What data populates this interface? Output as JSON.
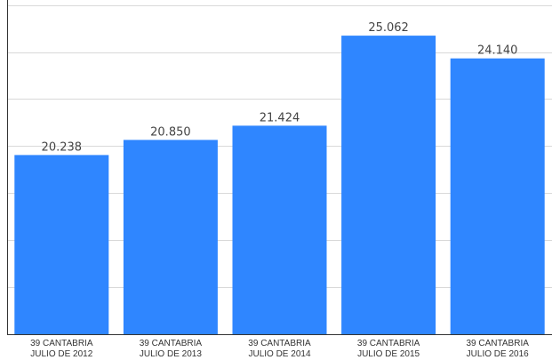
{
  "chart_data": {
    "type": "bar",
    "categories": [
      [
        "39 CANTABRIA",
        "JULIO DE 2012"
      ],
      [
        "39 CANTABRIA",
        "JULIO DE 2013"
      ],
      [
        "39 CANTABRIA",
        "JULIO DE 2014"
      ],
      [
        "39 CANTABRIA",
        "JULIO DE 2015"
      ],
      [
        "39 CANTABRIA",
        "JULIO DE 2016"
      ]
    ],
    "values": [
      20238,
      20850,
      21424,
      25062,
      24140
    ],
    "value_labels": [
      "20.238",
      "20.850",
      "21.424",
      "25.062",
      "24.140"
    ],
    "title": "",
    "xlabel": "",
    "ylabel": "",
    "ylim": [
      13000,
      26500
    ],
    "grid": true,
    "legend": "none",
    "bar_color": "#2f86ff"
  }
}
